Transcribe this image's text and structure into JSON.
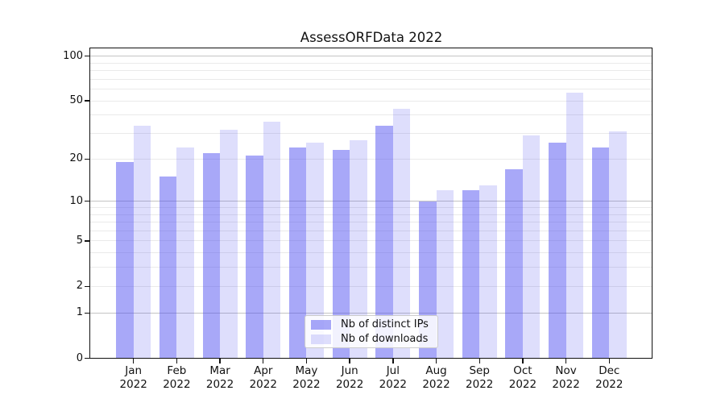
{
  "title": "AssessORFData 2022",
  "chart_data": {
    "type": "bar",
    "title": "AssessORFData 2022",
    "categories": [
      "Jan",
      "Feb",
      "Mar",
      "Apr",
      "May",
      "Jun",
      "Jul",
      "Aug",
      "Sep",
      "Oct",
      "Nov",
      "Dec"
    ],
    "category_year": "2022",
    "series": [
      {
        "name": "Nb of distinct IPs",
        "color": "rgba(70,70,240,0.47)",
        "values": [
          19,
          15,
          22,
          21,
          24,
          23,
          34,
          10,
          12,
          17,
          26,
          24
        ]
      },
      {
        "name": "Nb of downloads",
        "color": "rgba(70,70,240,0.18)",
        "values": [
          34,
          24,
          32,
          36,
          26,
          27,
          44,
          12,
          13,
          29,
          57,
          31
        ]
      }
    ],
    "y_scale": "log10(1+y)",
    "y_tick_values": [
      100,
      50,
      20,
      10,
      5,
      2,
      1,
      0
    ],
    "y_tick_labels": [
      "100",
      "50",
      "20",
      "10",
      "5",
      "2",
      "1",
      "0"
    ],
    "grid_major_values": [
      1,
      10,
      100
    ],
    "grid_minor_values": [
      2,
      3,
      4,
      5,
      6,
      7,
      8,
      9,
      20,
      30,
      40,
      50,
      60,
      70,
      80,
      90
    ],
    "ylim": [
      0,
      113
    ],
    "grid": true,
    "legend_position": "lower center",
    "legend_entries": [
      "Nb of distinct IPs",
      "Nb of downloads"
    ]
  },
  "colors": {
    "bar_distinct_ips": "rgba(70,70,240,0.47)",
    "bar_downloads": "rgba(70,70,240,0.18)",
    "grid_major": "#c4c4c4",
    "grid_minor": "#eaeaea",
    "axis_frame": "#111111",
    "legend_border": "#cccccc"
  }
}
